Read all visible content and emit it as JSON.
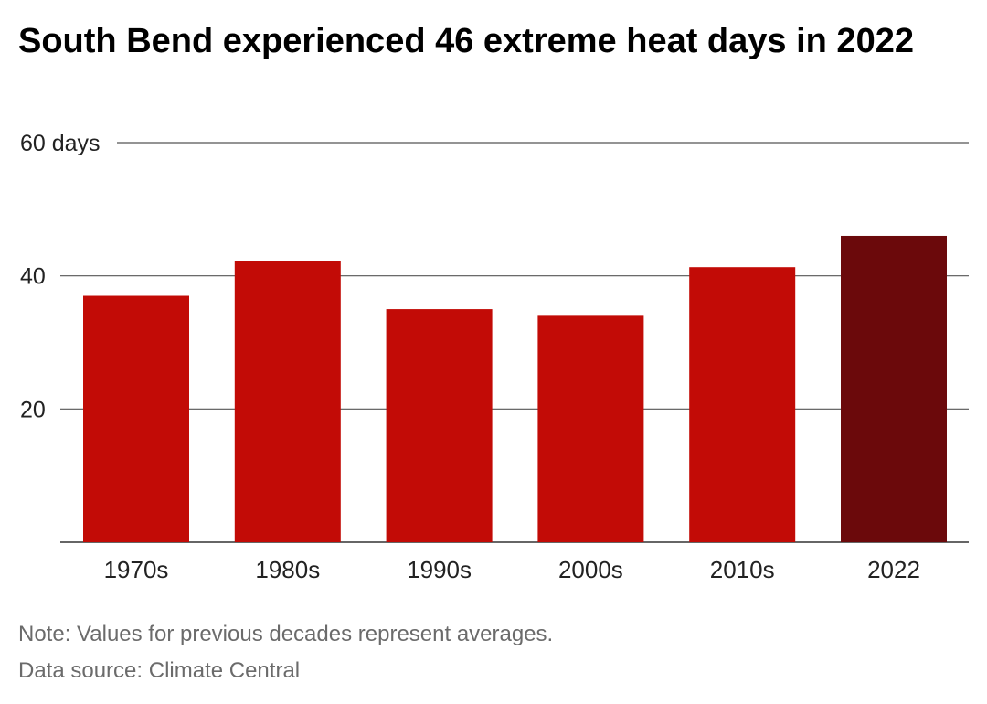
{
  "title": "South Bend experienced 46 extreme heat days in 2022",
  "note": "Note: Values for previous decades represent averages.",
  "source": "Data source: Climate Central",
  "colors": {
    "bar": "#c20b06",
    "highlight": "#6b090b",
    "grid": "#555555",
    "axis_text": "#222222"
  },
  "chart_data": {
    "type": "bar",
    "categories": [
      "1970s",
      "1980s",
      "1990s",
      "2000s",
      "2010s",
      "2022"
    ],
    "values": [
      37,
      42.2,
      35,
      34,
      41.3,
      46
    ],
    "highlight": "2022",
    "ylim": [
      0,
      60
    ],
    "yticks": [
      20,
      40,
      60
    ],
    "ytick_labels": [
      "20",
      "40",
      "60 days"
    ],
    "grid": true
  }
}
